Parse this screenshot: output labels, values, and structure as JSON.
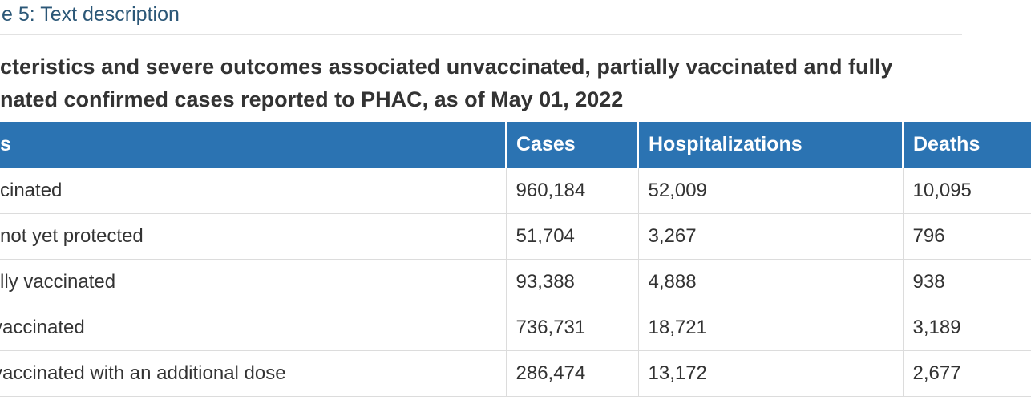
{
  "page": {
    "title_fragment": "e 5: Text description"
  },
  "heading": {
    "line1": "cteristics and severe outcomes associated unvaccinated, partially vaccinated and fully",
    "line2": "nated confirmed cases reported to PHAC, as of May 01, 2022"
  },
  "table": {
    "headers": [
      {
        "label": "s"
      },
      {
        "label": "Cases"
      },
      {
        "label": "Hospitalizations"
      },
      {
        "label": "Deaths"
      }
    ],
    "rows": [
      {
        "sliver": "",
        "label": "cinated",
        "cases": "960,184",
        "hospitalizations": "52,009",
        "deaths": "10,095"
      },
      {
        "sliver": "",
        "label": "not yet protected",
        "cases": "51,704",
        "hospitalizations": "3,267",
        "deaths": "796"
      },
      {
        "sliver": "",
        "label": "lly vaccinated",
        "cases": "93,388",
        "hospitalizations": "4,888",
        "deaths": "938"
      },
      {
        "sliver": "v",
        "label": "accinated",
        "cases": "736,731",
        "hospitalizations": "18,721",
        "deaths": "3,189"
      },
      {
        "sliver": "v",
        "label": "accinated with an additional dose",
        "cases": "286,474",
        "hospitalizations": "13,172",
        "deaths": "2,677"
      }
    ]
  },
  "colors": {
    "header_bg": "#2B73B2",
    "title_text": "#2B5777",
    "body_text": "#333333",
    "border": "#DCDCDC",
    "rule": "#E2E2E2"
  }
}
